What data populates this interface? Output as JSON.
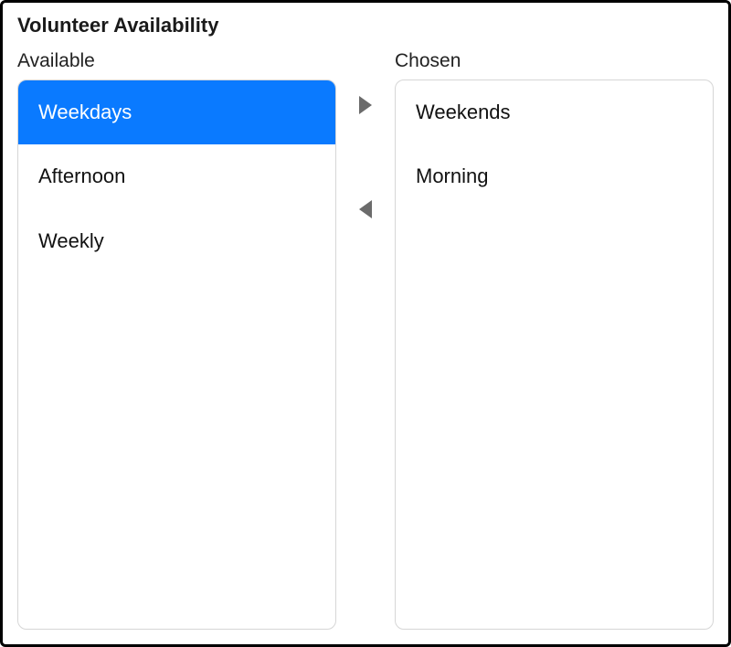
{
  "title": "Volunteer Availability",
  "available": {
    "label": "Available",
    "items": [
      {
        "label": "Weekdays",
        "selected": true
      },
      {
        "label": "Afternoon",
        "selected": false
      },
      {
        "label": "Weekly",
        "selected": false
      }
    ]
  },
  "chosen": {
    "label": "Chosen",
    "items": [
      {
        "label": "Weekends",
        "selected": false
      },
      {
        "label": "Morning",
        "selected": false
      }
    ]
  },
  "colors": {
    "selection": "#0a7aff",
    "arrow": "#6b6b6b",
    "border": "#d6d6d6",
    "outer_border": "#000000",
    "text": "#111111",
    "background": "#ffffff"
  }
}
